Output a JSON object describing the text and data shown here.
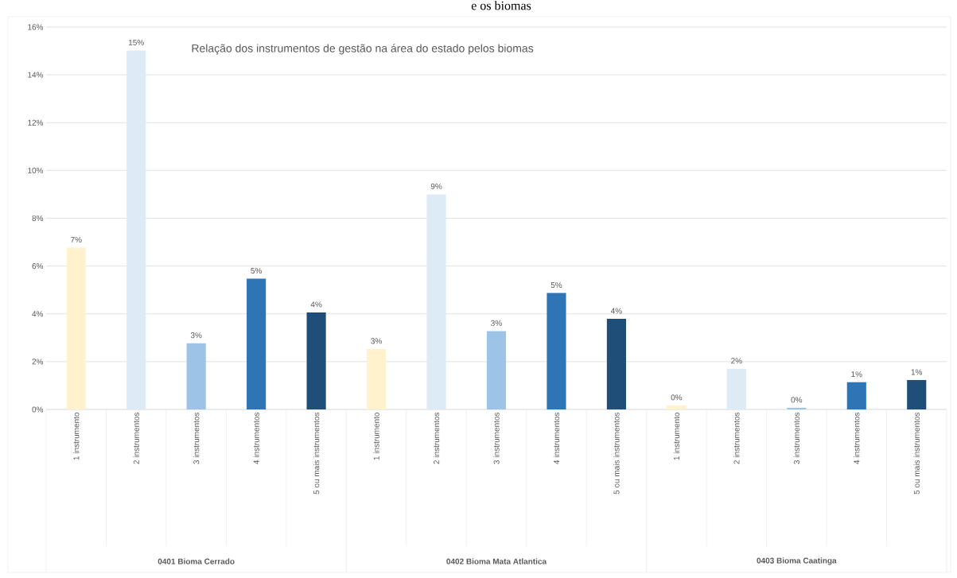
{
  "chart_data": {
    "type": "bar",
    "title": "e os biomas",
    "categories": [
      "1 instrumento",
      "2 instrumentos",
      "3 instrumentos",
      "4 instrumentos",
      "5 ou mais instrumentos",
      "1 instrumento",
      "2 instrumentos",
      "3 instrumentos",
      "4 instrumentos",
      "5 ou mais instrumentos",
      "1 instrumento",
      "2 instrumentos",
      "3 instrumentos",
      "4 instrumentos",
      "5 ou mais instrumentos"
    ],
    "values": [
      6.77,
      15.02,
      2.77,
      5.47,
      4.06,
      2.53,
      9.0,
      3.28,
      4.87,
      3.79,
      0.17,
      1.7,
      0.07,
      1.14,
      1.23
    ],
    "colors": [
      "#fff2cc",
      "#ddebf7",
      "#9dc3e6",
      "#2e75b6",
      "#1f4e79",
      "#fff2cc",
      "#ddebf7",
      "#9dc3e6",
      "#2e75b6",
      "#1f4e79",
      "#fff2cc",
      "#ddebf7",
      "#9dc3e6",
      "#2e75b6",
      "#1f4e79"
    ],
    "value_labels": [
      "7%",
      "15%",
      "3%",
      "5%",
      "4%",
      "3%",
      "9%",
      "3%",
      "5%",
      "4%",
      "0%",
      "2%",
      "0%",
      "1%",
      "1%"
    ],
    "ylim": [
      0,
      16
    ],
    "yticks": [
      {
        "value": 0,
        "label": "0%"
      },
      {
        "value": 2,
        "label": "2%"
      },
      {
        "value": 4,
        "label": "4%"
      },
      {
        "value": 6,
        "label": "6%"
      },
      {
        "value": 8,
        "label": "8%"
      },
      {
        "value": 10,
        "label": "10%"
      },
      {
        "value": 12,
        "label": "12%"
      },
      {
        "value": 14,
        "label": "14%"
      },
      {
        "value": 16,
        "label": "16%"
      }
    ],
    "grid": "y",
    "annotations": [
      "Relação dos instrumentos de gestão na área do estado pelos biomas",
      "0401 Bioma Cerrado",
      "0402 Bioma Mata Atlantica",
      "0403 Bioma Caatinga"
    ]
  }
}
